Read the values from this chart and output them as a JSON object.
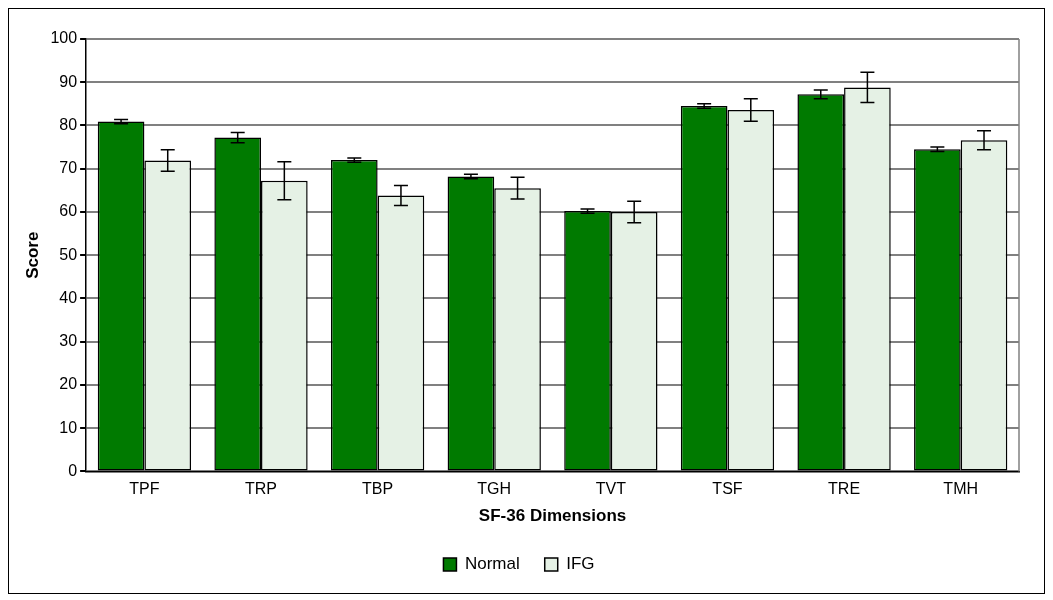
{
  "chart_data": {
    "type": "bar",
    "xlabel": "SF-36 Dimensions",
    "ylabel": "Score",
    "categories": [
      "TPF",
      "TRP",
      "TBP",
      "TGH",
      "TVT",
      "TSF",
      "TRE",
      "TMH"
    ],
    "series": [
      {
        "name": "Normal",
        "color": "#007a00",
        "values": [
          80.9,
          77.2,
          72,
          68.2,
          60.2,
          84.5,
          87.2,
          74.5
        ],
        "errors": [
          0.5,
          1.2,
          0.5,
          0.5,
          0.5,
          0.5,
          1,
          0.5
        ]
      },
      {
        "name": "IFG",
        "color": "#e5f1e5",
        "values": [
          71.9,
          67.2,
          63.8,
          65.5,
          60,
          83.6,
          88.8,
          76.6
        ],
        "errors": [
          2.5,
          4.4,
          2.3,
          2.5,
          2.5,
          2.6,
          3.5,
          2.2
        ]
      }
    ],
    "ylim": [
      0,
      100
    ],
    "yticks": [
      0,
      10,
      20,
      30,
      40,
      50,
      60,
      70,
      80,
      90,
      100
    ],
    "grid": "y",
    "legend": "bottom"
  }
}
